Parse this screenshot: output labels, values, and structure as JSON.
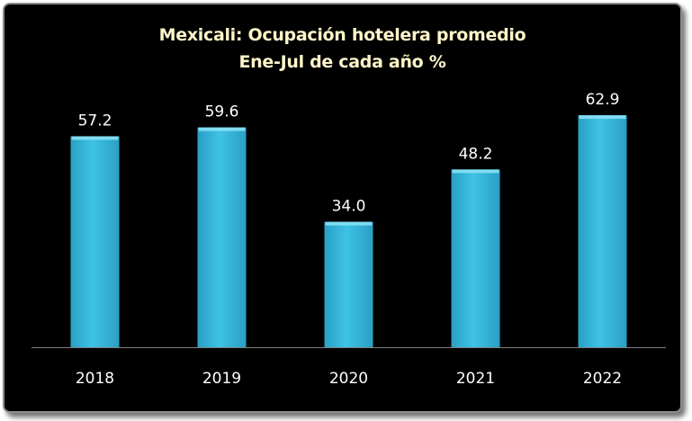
{
  "chart_data": {
    "type": "bar",
    "title": "Mexicali: Ocupación hotelera promedio",
    "subtitle": "Ene-Jul de cada año %",
    "categories": [
      "2018",
      "2019",
      "2020",
      "2021",
      "2022"
    ],
    "values": [
      57.2,
      59.6,
      34.0,
      48.2,
      62.9
    ],
    "value_labels": [
      "57.2",
      "59.6",
      "34.0",
      "48.2",
      "62.9"
    ],
    "xlabel": "",
    "ylabel": "",
    "ylim": [
      0,
      70
    ],
    "grid": false,
    "legend": "none",
    "colors": {
      "background": "#000000",
      "bar": "#3ec3e6",
      "bar_light": "#8ee4f7",
      "bar_dark": "#2a9fc4",
      "title": "#fdf5c8",
      "labels": "#ffffff",
      "axis": "#7f7f7f"
    }
  }
}
